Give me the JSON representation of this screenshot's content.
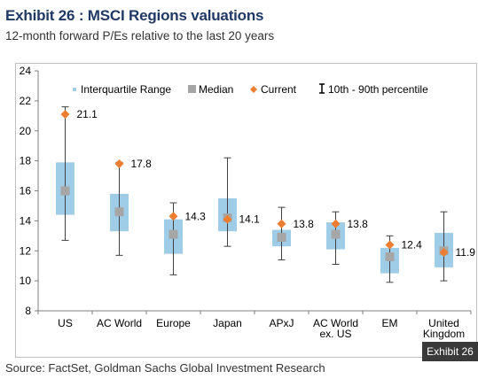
{
  "header": {
    "title": "Exhibit 26 : MSCI Regions valuations",
    "subtitle": "12-month forward P/Es relative to the last 20 years"
  },
  "footer": {
    "source": "Source: FactSet, Goldman Sachs Global Investment Research",
    "badge": "Exhibit 26"
  },
  "colors": {
    "iqr": "#9fcde8",
    "median": "#a6a6a6",
    "current": "#ed7d31",
    "whisker": "#404040",
    "title": "#1f3864"
  },
  "chart_data": {
    "type": "box",
    "categories": [
      "US",
      "AC World",
      "Europe",
      "Japan",
      "APxJ",
      "AC World ex. US",
      "EM",
      "United Kingdom"
    ],
    "category_labels": [
      [
        "US"
      ],
      [
        "AC World"
      ],
      [
        "Europe"
      ],
      [
        "Japan"
      ],
      [
        "APxJ"
      ],
      [
        "AC World",
        "ex. US"
      ],
      [
        "EM"
      ],
      [
        "United",
        "Kingdom"
      ]
    ],
    "ylim": [
      8,
      24
    ],
    "yticks": [
      8,
      10,
      12,
      14,
      16,
      18,
      20,
      22,
      24
    ],
    "grid": false,
    "legend": {
      "position": "top",
      "items": [
        {
          "key": "iqr",
          "label": "Interquartile Range"
        },
        {
          "key": "median",
          "label": "Median"
        },
        {
          "key": "current",
          "label": "Current"
        },
        {
          "key": "range",
          "label": "10th - 90th percentile"
        }
      ]
    },
    "series": [
      {
        "category": "US",
        "p10": 12.7,
        "q1": 14.4,
        "median": 16.0,
        "q3": 17.9,
        "p90": 21.6,
        "current": 21.1,
        "current_label": "21.1"
      },
      {
        "category": "AC World",
        "p10": 11.7,
        "q1": 13.3,
        "median": 14.6,
        "q3": 15.8,
        "p90": 17.9,
        "current": 17.8,
        "current_label": "17.8"
      },
      {
        "category": "Europe",
        "p10": 10.4,
        "q1": 11.8,
        "median": 13.1,
        "q3": 14.1,
        "p90": 15.2,
        "current": 14.3,
        "current_label": "14.3"
      },
      {
        "category": "Japan",
        "p10": 12.3,
        "q1": 13.3,
        "median": 14.2,
        "q3": 15.5,
        "p90": 18.2,
        "current": 14.1,
        "current_label": "14.1"
      },
      {
        "category": "APxJ",
        "p10": 11.4,
        "q1": 12.3,
        "median": 12.9,
        "q3": 13.4,
        "p90": 14.9,
        "current": 13.8,
        "current_label": "13.8"
      },
      {
        "category": "AC World ex. US",
        "p10": 11.1,
        "q1": 12.1,
        "median": 13.1,
        "q3": 13.9,
        "p90": 14.6,
        "current": 13.8,
        "current_label": "13.8"
      },
      {
        "category": "EM",
        "p10": 9.9,
        "q1": 10.5,
        "median": 11.6,
        "q3": 12.2,
        "p90": 13.0,
        "current": 12.4,
        "current_label": "12.4"
      },
      {
        "category": "United Kingdom",
        "p10": 10.0,
        "q1": 10.9,
        "median": 12.0,
        "q3": 13.2,
        "p90": 14.6,
        "current": 11.9,
        "current_label": "11.9"
      }
    ]
  }
}
